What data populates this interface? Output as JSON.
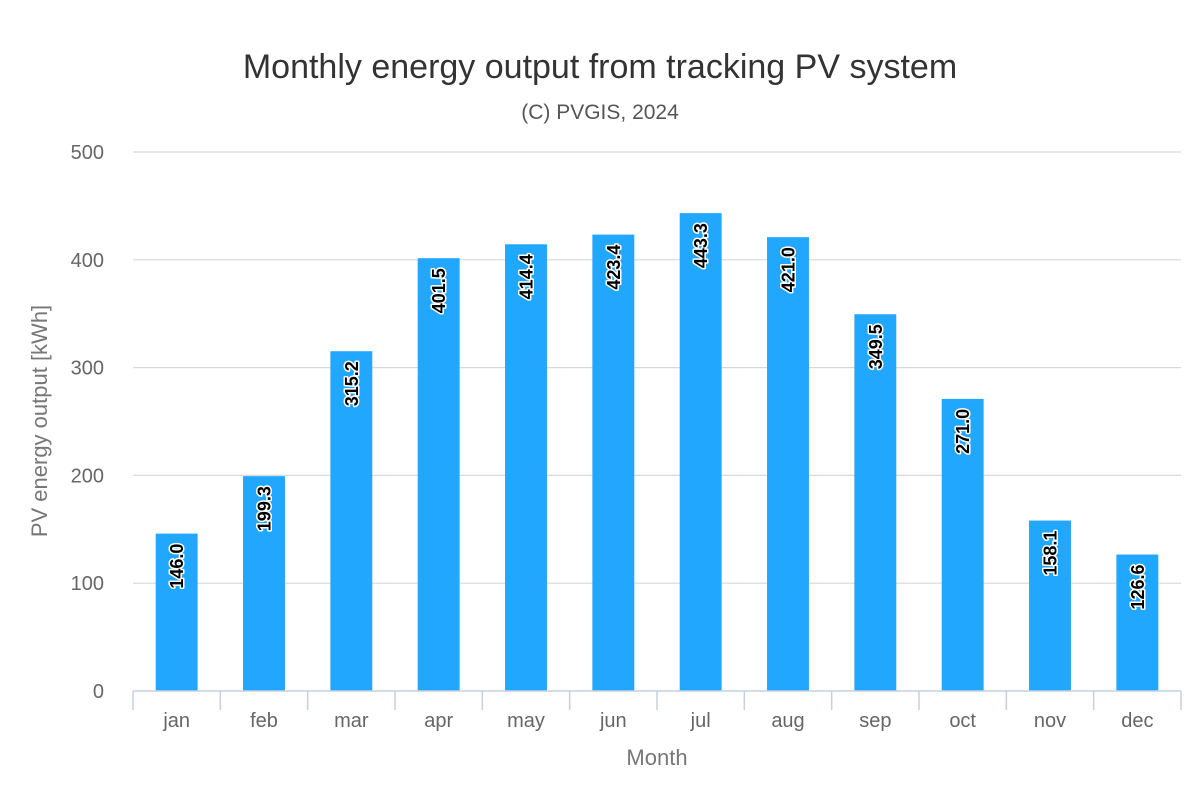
{
  "chart_data": {
    "type": "bar",
    "title": "Monthly energy output from tracking PV system",
    "subtitle": "(C) PVGIS, 2024",
    "xlabel": "Month",
    "ylabel": "PV energy output [kWh]",
    "categories": [
      "jan",
      "feb",
      "mar",
      "apr",
      "may",
      "jun",
      "jul",
      "aug",
      "sep",
      "oct",
      "nov",
      "dec"
    ],
    "values": [
      146.0,
      199.3,
      315.2,
      401.5,
      414.4,
      423.4,
      443.3,
      421.0,
      349.5,
      271.0,
      158.1,
      126.6
    ],
    "value_labels": [
      "146.0",
      "199.3",
      "315.2",
      "401.5",
      "414.4",
      "423.4",
      "443.3",
      "421.0",
      "349.5",
      "271.0",
      "158.1",
      "126.6"
    ],
    "ylim": [
      0,
      500
    ],
    "yticks": [
      "0",
      "100",
      "200",
      "300",
      "400",
      "500"
    ],
    "grid": true,
    "legend": "none",
    "bar_color": "#22a7fe"
  }
}
